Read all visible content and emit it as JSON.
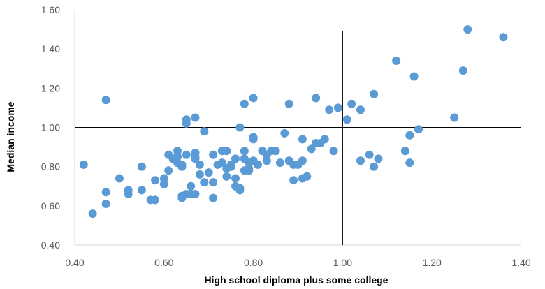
{
  "chart_data": {
    "type": "scatter",
    "title": "",
    "xlabel": "High school diploma plus some college",
    "ylabel": "Median income",
    "xlim": [
      0.4,
      1.4
    ],
    "ylim": [
      0.4,
      1.6
    ],
    "x_ticks": [
      "0.40",
      "0.60",
      "0.80",
      "1.00",
      "1.20",
      "1.40"
    ],
    "y_ticks": [
      "0.40",
      "0.60",
      "0.80",
      "1.00",
      "1.20",
      "1.40",
      "1.60"
    ],
    "grid": false,
    "legend": "none",
    "marker_color": "#5B9BD5",
    "reference_lines": [
      {
        "orientation": "vertical",
        "x": 1.0,
        "y_range": [
          0.4,
          1.49
        ]
      },
      {
        "orientation": "horizontal",
        "y": 1.0,
        "x_range": [
          0.4,
          1.4
        ]
      }
    ],
    "series": [
      {
        "points": [
          [
            0.42,
            0.81
          ],
          [
            0.44,
            0.56
          ],
          [
            0.47,
            0.67
          ],
          [
            0.47,
            1.14
          ],
          [
            0.47,
            0.61
          ],
          [
            0.5,
            0.74
          ],
          [
            0.52,
            0.68
          ],
          [
            0.52,
            0.66
          ],
          [
            0.55,
            0.68
          ],
          [
            0.55,
            0.8
          ],
          [
            0.57,
            0.63
          ],
          [
            0.58,
            0.73
          ],
          [
            0.58,
            0.63
          ],
          [
            0.6,
            0.74
          ],
          [
            0.6,
            0.71
          ],
          [
            0.61,
            0.78
          ],
          [
            0.61,
            0.86
          ],
          [
            0.62,
            0.84
          ],
          [
            0.63,
            0.82
          ],
          [
            0.63,
            0.85
          ],
          [
            0.63,
            0.88
          ],
          [
            0.64,
            0.8
          ],
          [
            0.64,
            0.81
          ],
          [
            0.64,
            0.64
          ],
          [
            0.64,
            0.65
          ],
          [
            0.65,
            1.04
          ],
          [
            0.65,
            1.02
          ],
          [
            0.65,
            0.66
          ],
          [
            0.65,
            0.86
          ],
          [
            0.66,
            0.66
          ],
          [
            0.66,
            0.7
          ],
          [
            0.67,
            0.84
          ],
          [
            0.67,
            0.66
          ],
          [
            0.67,
            0.85
          ],
          [
            0.67,
            1.05
          ],
          [
            0.67,
            0.87
          ],
          [
            0.68,
            0.76
          ],
          [
            0.68,
            0.81
          ],
          [
            0.69,
            0.72
          ],
          [
            0.69,
            0.98
          ],
          [
            0.7,
            0.77
          ],
          [
            0.71,
            0.86
          ],
          [
            0.71,
            0.72
          ],
          [
            0.71,
            0.64
          ],
          [
            0.72,
            0.81
          ],
          [
            0.73,
            0.88
          ],
          [
            0.73,
            0.82
          ],
          [
            0.74,
            0.88
          ],
          [
            0.74,
            0.79
          ],
          [
            0.74,
            0.75
          ],
          [
            0.75,
            0.8
          ],
          [
            0.75,
            0.81
          ],
          [
            0.76,
            0.84
          ],
          [
            0.76,
            0.74
          ],
          [
            0.76,
            0.7
          ],
          [
            0.77,
            0.68
          ],
          [
            0.77,
            0.69
          ],
          [
            0.77,
            1.0
          ],
          [
            0.78,
            0.84
          ],
          [
            0.78,
            0.78
          ],
          [
            0.78,
            1.12
          ],
          [
            0.78,
            0.88
          ],
          [
            0.79,
            0.79
          ],
          [
            0.79,
            0.82
          ],
          [
            0.79,
            0.78
          ],
          [
            0.8,
            0.95
          ],
          [
            0.8,
            0.94
          ],
          [
            0.8,
            1.15
          ],
          [
            0.8,
            0.83
          ],
          [
            0.81,
            0.81
          ],
          [
            0.82,
            0.88
          ],
          [
            0.83,
            0.86
          ],
          [
            0.83,
            0.83
          ],
          [
            0.84,
            0.88
          ],
          [
            0.85,
            0.88
          ],
          [
            0.86,
            0.82
          ],
          [
            0.87,
            0.97
          ],
          [
            0.88,
            1.12
          ],
          [
            0.88,
            0.83
          ],
          [
            0.89,
            0.81
          ],
          [
            0.89,
            0.73
          ],
          [
            0.9,
            0.81
          ],
          [
            0.91,
            0.94
          ],
          [
            0.91,
            0.83
          ],
          [
            0.91,
            0.74
          ],
          [
            0.92,
            0.75
          ],
          [
            0.93,
            0.89
          ],
          [
            0.94,
            0.92
          ],
          [
            0.94,
            1.15
          ],
          [
            0.95,
            0.92
          ],
          [
            0.96,
            0.94
          ],
          [
            0.97,
            1.09
          ],
          [
            0.98,
            0.88
          ],
          [
            0.99,
            1.1
          ],
          [
            1.01,
            1.04
          ],
          [
            1.02,
            1.12
          ],
          [
            1.04,
            1.09
          ],
          [
            1.04,
            0.83
          ],
          [
            1.06,
            0.86
          ],
          [
            1.07,
            1.17
          ],
          [
            1.07,
            0.8
          ],
          [
            1.08,
            0.84
          ],
          [
            1.12,
            1.34
          ],
          [
            1.14,
            0.88
          ],
          [
            1.15,
            0.82
          ],
          [
            1.15,
            0.96
          ],
          [
            1.16,
            1.26
          ],
          [
            1.17,
            0.99
          ],
          [
            1.25,
            1.05
          ],
          [
            1.27,
            1.29
          ],
          [
            1.28,
            1.5
          ],
          [
            1.36,
            1.46
          ]
        ]
      }
    ]
  }
}
